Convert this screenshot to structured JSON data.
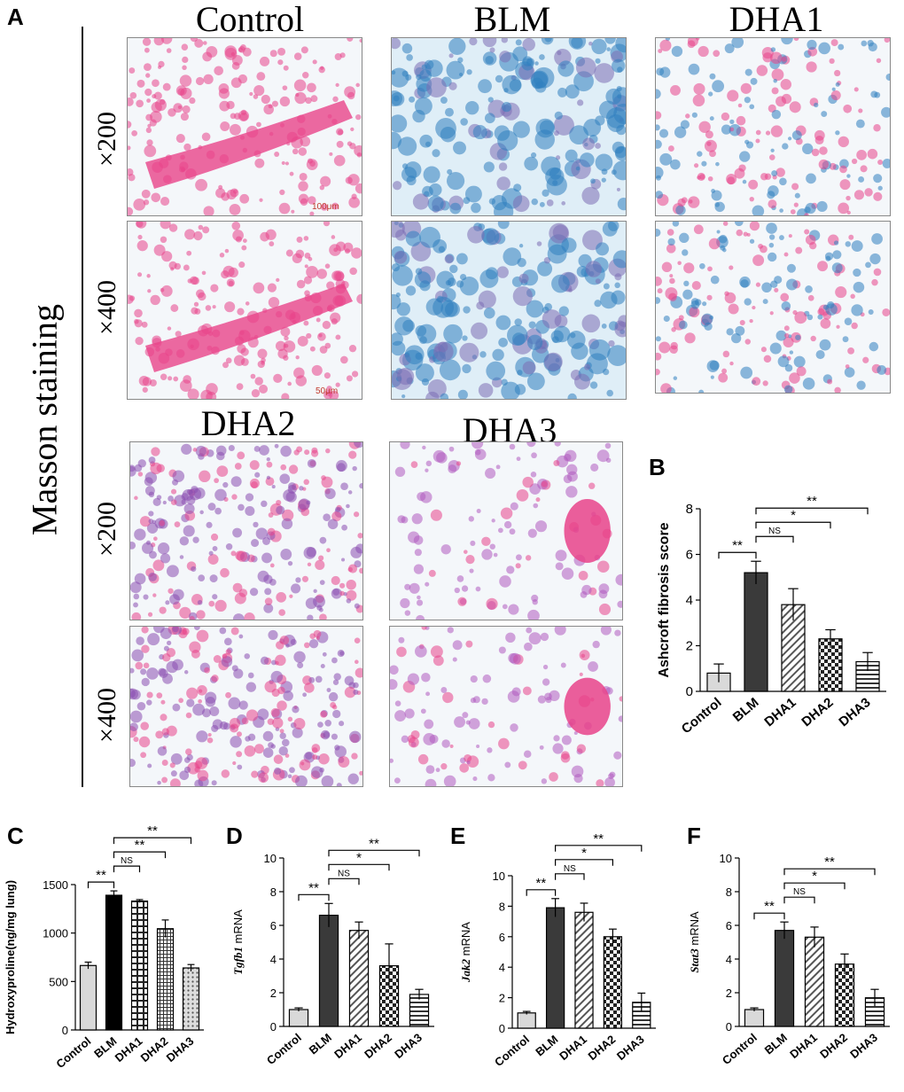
{
  "figure": {
    "panel_letters": [
      "A",
      "B",
      "C",
      "D",
      "E",
      "F"
    ],
    "row_label": "Masson staining",
    "column_titles": [
      "Control",
      "BLM",
      "DHA1",
      "DHA2",
      "DHA3"
    ],
    "magnifications": [
      "×200",
      "×400",
      "×200",
      "×400"
    ],
    "scale_bars": [
      "100μm",
      "50μm"
    ]
  },
  "colors": {
    "control": "#d9d9d9",
    "blm": "#3a3a3a",
    "blm_c": "#000000",
    "hatch_fg": "#555555",
    "tissue_pink": "#e8438a",
    "collagen_blue": "#2f7fc0"
  },
  "chart_data": [
    {
      "panel": "B",
      "type": "bar",
      "categories": [
        "Control",
        "BLM",
        "DHA1",
        "DHA2",
        "DHA3"
      ],
      "values": [
        0.8,
        5.2,
        3.8,
        2.3,
        1.3
      ],
      "errors": [
        0.4,
        0.5,
        0.7,
        0.4,
        0.4
      ],
      "ylabel": "Ashcroft fibrosis score",
      "ylim": [
        0,
        8
      ],
      "yticks": [
        0,
        2,
        4,
        6,
        8
      ],
      "patterns": [
        "control",
        "dark",
        "diag",
        "check",
        "hlines"
      ],
      "significance": [
        {
          "from": 0,
          "to": 1,
          "label": "**"
        },
        {
          "from": 1,
          "to": 2,
          "label": "NS"
        },
        {
          "from": 1,
          "to": 3,
          "label": "*"
        },
        {
          "from": 1,
          "to": 4,
          "label": "**"
        }
      ]
    },
    {
      "panel": "C",
      "type": "bar",
      "categories": [
        "Control",
        "BLM",
        "DHA1",
        "DHA2",
        "DHA3"
      ],
      "values": [
        665,
        1390,
        1330,
        1045,
        640
      ],
      "errors": [
        35,
        45,
        15,
        90,
        35
      ],
      "ylabel": "Hydroxyproline(ng/mg lung)",
      "ylim": [
        0,
        1500
      ],
      "yticks": [
        0,
        500,
        1000,
        1500
      ],
      "patterns": [
        "control",
        "black",
        "grid",
        "finegrid",
        "dots"
      ],
      "significance": [
        {
          "from": 0,
          "to": 1,
          "label": "**"
        },
        {
          "from": 1,
          "to": 2,
          "label": "NS"
        },
        {
          "from": 1,
          "to": 3,
          "label": "**"
        },
        {
          "from": 1,
          "to": 4,
          "label": "**"
        }
      ]
    },
    {
      "panel": "D",
      "type": "bar",
      "categories": [
        "Control",
        "BLM",
        "DHA1",
        "DHA2",
        "DHA3"
      ],
      "values": [
        1.0,
        6.6,
        5.7,
        3.6,
        1.9
      ],
      "errors": [
        0.1,
        0.7,
        0.5,
        1.3,
        0.3
      ],
      "ylabel_italic": "Tgfb1",
      "ylabel": " mRNA",
      "ylim": [
        0,
        10
      ],
      "yticks": [
        0,
        2,
        4,
        6,
        8,
        10
      ],
      "patterns": [
        "control",
        "dark",
        "diag",
        "check",
        "hlines"
      ],
      "significance": [
        {
          "from": 0,
          "to": 1,
          "label": "**"
        },
        {
          "from": 1,
          "to": 2,
          "label": "NS"
        },
        {
          "from": 1,
          "to": 3,
          "label": "*"
        },
        {
          "from": 1,
          "to": 4,
          "label": "**"
        }
      ]
    },
    {
      "panel": "E",
      "type": "bar",
      "categories": [
        "Control",
        "BLM",
        "DHA1",
        "DHA2",
        "DHA3"
      ],
      "values": [
        1.0,
        7.9,
        7.6,
        6.0,
        1.7
      ],
      "errors": [
        0.1,
        0.6,
        0.6,
        0.5,
        0.6
      ],
      "ylabel_italic": "Jak2",
      "ylabel": " mRNA",
      "ylim": [
        0,
        10
      ],
      "yticks": [
        0,
        2,
        4,
        6,
        8,
        10
      ],
      "patterns": [
        "control",
        "dark",
        "diag",
        "check",
        "hlines"
      ],
      "significance": [
        {
          "from": 0,
          "to": 1,
          "label": "**"
        },
        {
          "from": 1,
          "to": 2,
          "label": "NS"
        },
        {
          "from": 1,
          "to": 3,
          "label": "*"
        },
        {
          "from": 1,
          "to": 4,
          "label": "**"
        }
      ]
    },
    {
      "panel": "F",
      "type": "bar",
      "categories": [
        "Control",
        "BLM",
        "DHA1",
        "DHA2",
        "DHA3"
      ],
      "values": [
        1.0,
        5.7,
        5.3,
        3.7,
        1.7
      ],
      "errors": [
        0.1,
        0.5,
        0.6,
        0.6,
        0.5
      ],
      "ylabel_italic": "Stat3",
      "ylabel": " mRNA",
      "ylim": [
        0,
        10
      ],
      "yticks": [
        0,
        2,
        4,
        6,
        8,
        10
      ],
      "patterns": [
        "control",
        "dark",
        "diag",
        "check",
        "hlines"
      ],
      "significance": [
        {
          "from": 0,
          "to": 1,
          "label": "**"
        },
        {
          "from": 1,
          "to": 2,
          "label": "NS"
        },
        {
          "from": 1,
          "to": 3,
          "label": "*"
        },
        {
          "from": 1,
          "to": 4,
          "label": "**"
        }
      ]
    }
  ]
}
